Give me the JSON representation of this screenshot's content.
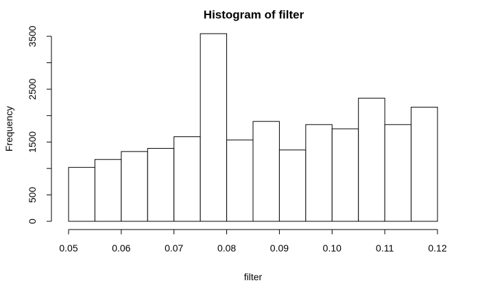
{
  "chart_data": {
    "type": "bar",
    "subtype": "histogram",
    "title": "Histogram of filter",
    "xlabel": "filter",
    "ylabel": "Frequency",
    "bin_edges": [
      0.05,
      0.055,
      0.06,
      0.065,
      0.07,
      0.075,
      0.08,
      0.085,
      0.09,
      0.095,
      0.1,
      0.105,
      0.11,
      0.115,
      0.12
    ],
    "values": [
      1020,
      1170,
      1320,
      1380,
      1600,
      3550,
      1540,
      1890,
      1350,
      1830,
      1750,
      2330,
      1830,
      2160
    ],
    "xlim": [
      0.05,
      0.12
    ],
    "ylim": [
      0,
      3500
    ],
    "x_ticks": [
      "0.05",
      "0.06",
      "0.07",
      "0.08",
      "0.09",
      "0.10",
      "0.11",
      "0.12"
    ],
    "x_tick_values": [
      0.05,
      0.06,
      0.07,
      0.08,
      0.09,
      0.1,
      0.11,
      0.12
    ],
    "y_ticks": [
      "0",
      "500",
      "1500",
      "2500",
      "3500"
    ],
    "y_tick_values": [
      0,
      500,
      1500,
      2500,
      3500
    ],
    "y_minor_ticks": [
      1000,
      2000,
      3000
    ],
    "grid": false,
    "legend": "none",
    "colors": {
      "bar_fill": "#ffffff",
      "bar_stroke": "#000000"
    }
  }
}
